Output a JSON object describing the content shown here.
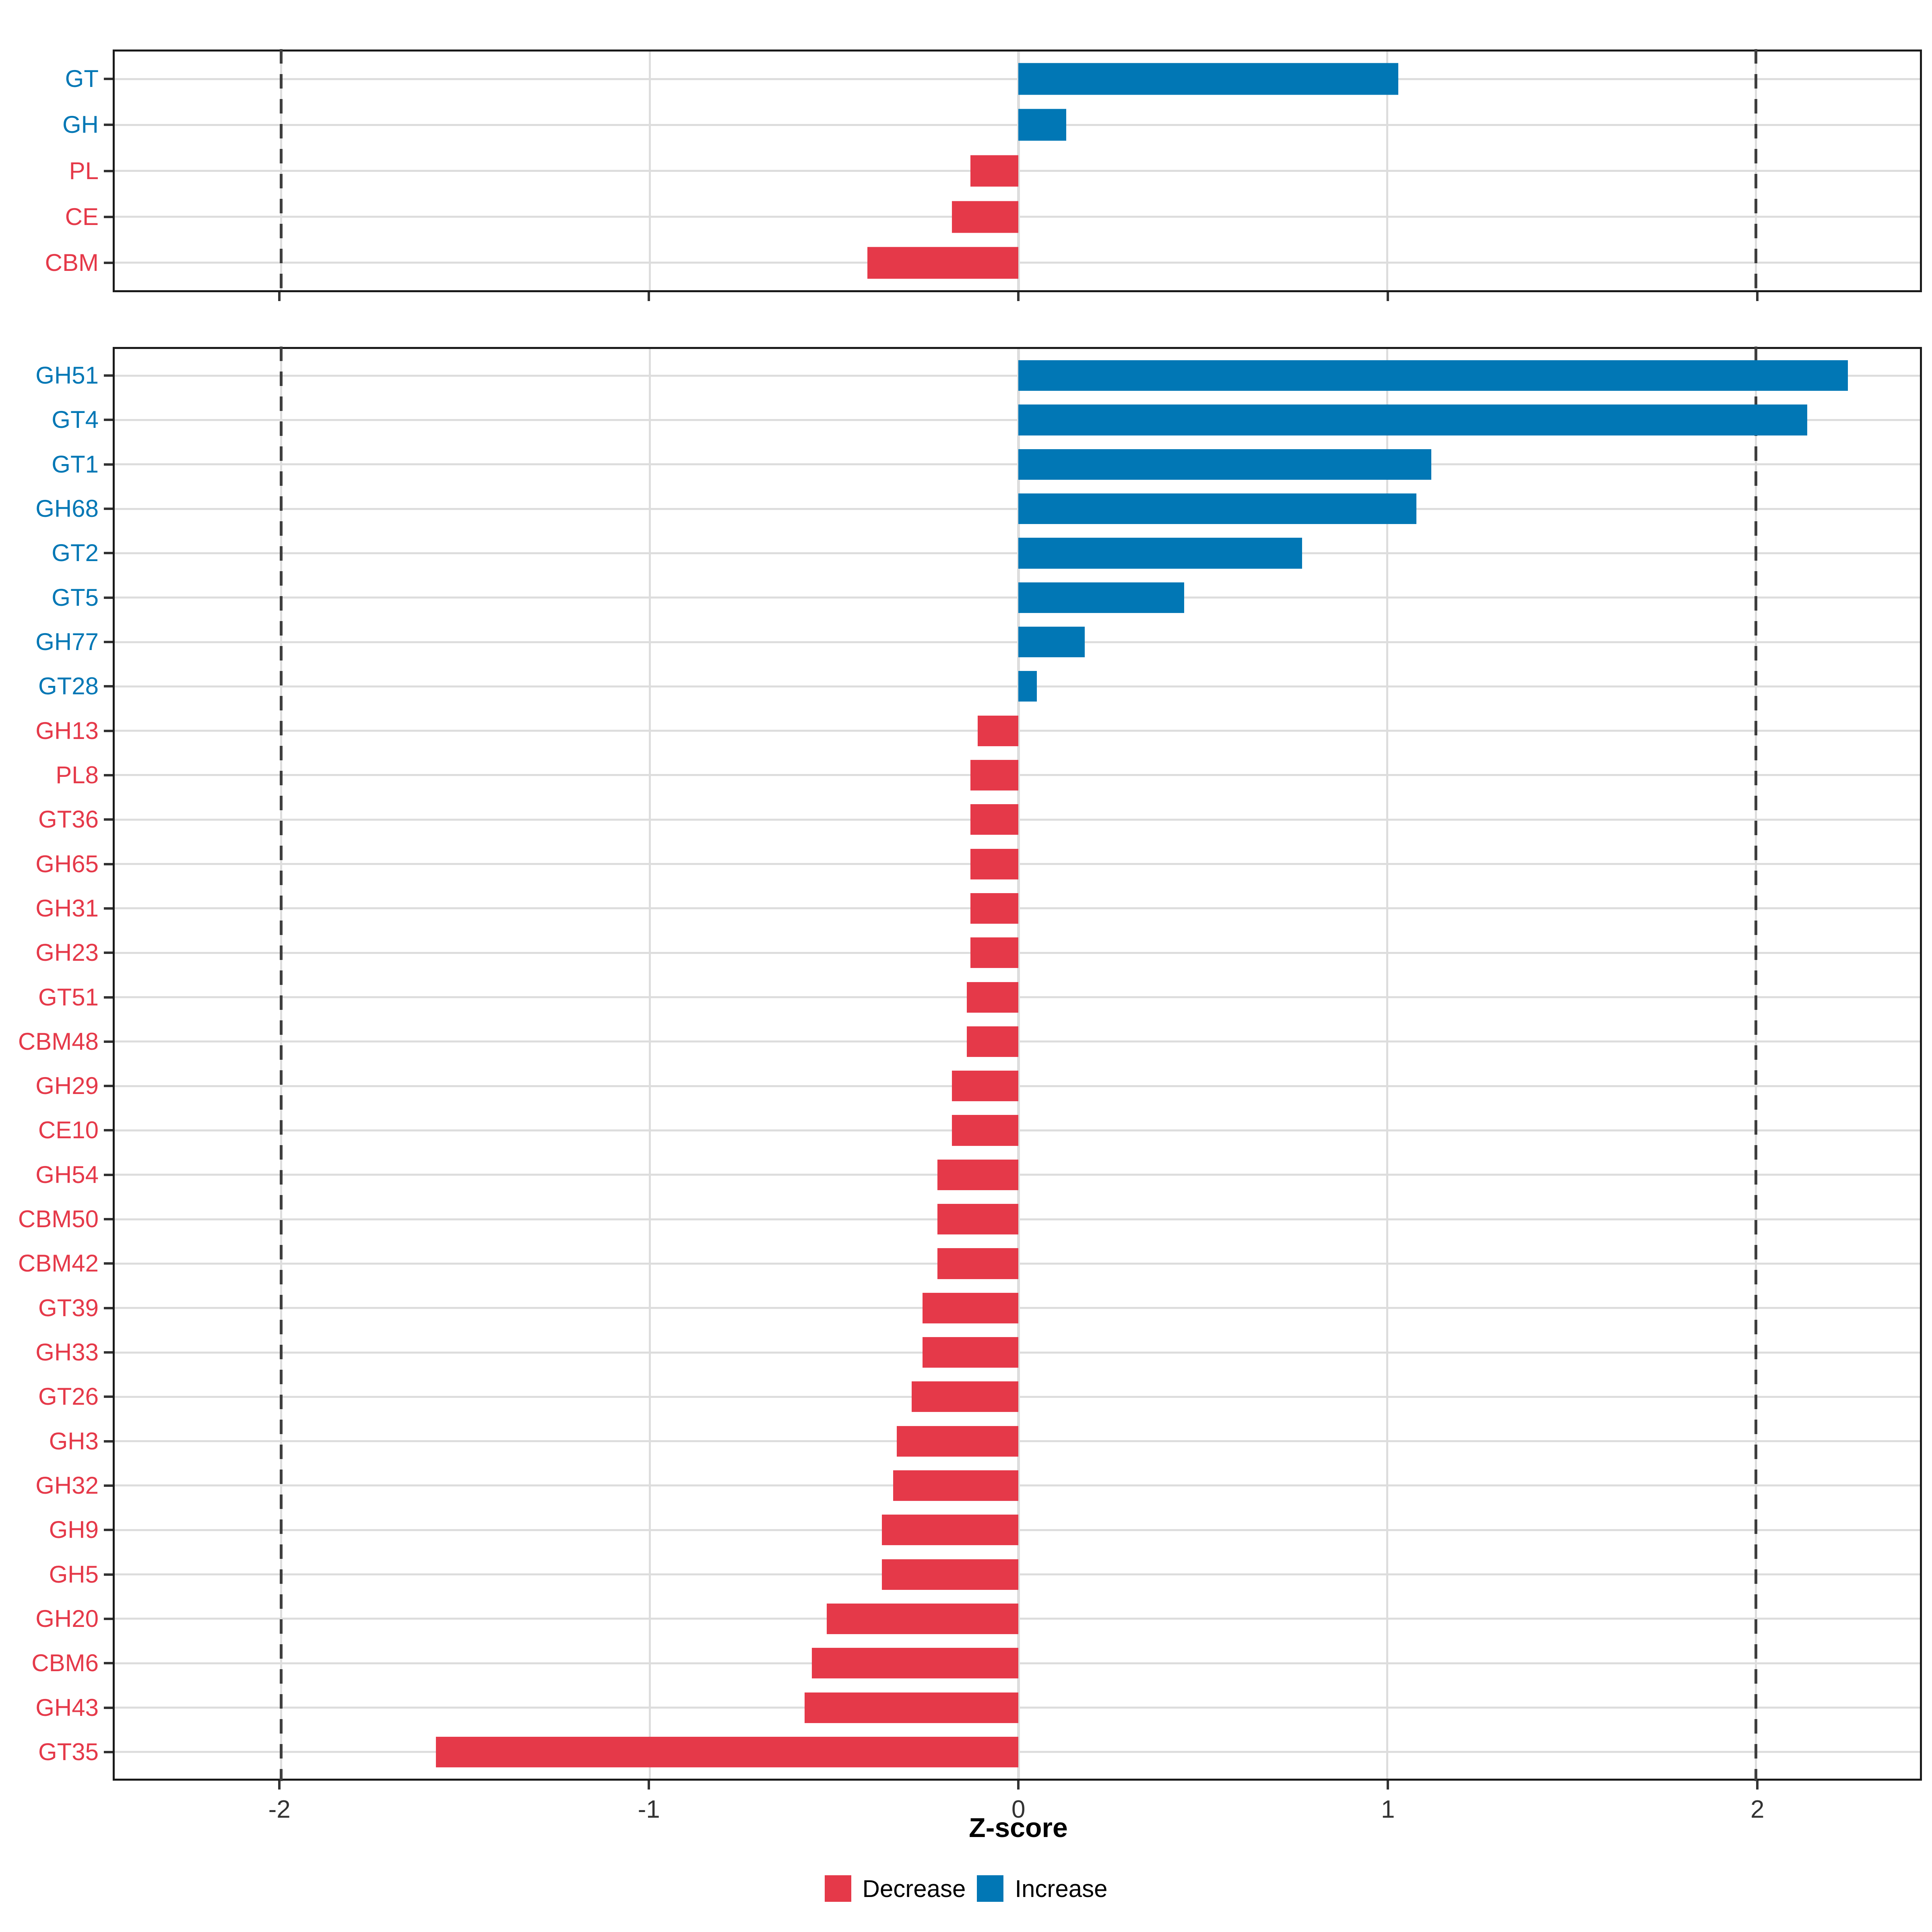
{
  "figure": {
    "xlabel": "Z-score",
    "xtick_labels": [
      "-2",
      "-1",
      "0",
      "1",
      "2"
    ],
    "legend": {
      "decrease_label": "Decrease",
      "increase_label": "Increase"
    },
    "colors": {
      "increase": "#0277B5",
      "decrease": "#E5394A",
      "grid": "#DDDDDD",
      "dashed": "#3F3F3F",
      "border": "#1A1A1A",
      "axis_text": "#333333"
    }
  },
  "chart_data": [
    {
      "type": "bar",
      "panel": "top",
      "orientation": "horizontal",
      "xlabel": "Z-score",
      "xlim": [
        -2.45,
        2.45
      ],
      "xticks": [
        -2,
        -1,
        0,
        1,
        2
      ],
      "grid_vlines": [
        -2,
        -1,
        0,
        1,
        2
      ],
      "dashed_vlines": [
        -2,
        2
      ],
      "grid": true,
      "legend_position": "bottom",
      "categories": [
        "GT",
        "GH",
        "PL",
        "CE",
        "CBM"
      ],
      "values": [
        1.03,
        0.13,
        -0.13,
        -0.18,
        -0.41
      ],
      "directions": [
        "increase",
        "increase",
        "decrease",
        "decrease",
        "decrease"
      ]
    },
    {
      "type": "bar",
      "panel": "bottom",
      "orientation": "horizontal",
      "xlabel": "Z-score",
      "xlim": [
        -2.45,
        2.45
      ],
      "xticks": [
        -2,
        -1,
        0,
        1,
        2
      ],
      "grid_vlines": [
        -2,
        -1,
        0,
        1,
        2
      ],
      "dashed_vlines": [
        -2,
        2
      ],
      "grid": true,
      "legend_position": "bottom",
      "categories": [
        "GH51",
        "GT4",
        "GT1",
        "GH68",
        "GT2",
        "GT5",
        "GH77",
        "GT28",
        "GH13",
        "PL8",
        "GT36",
        "GH65",
        "GH31",
        "GH23",
        "GT51",
        "CBM48",
        "GH29",
        "CE10",
        "GH54",
        "CBM50",
        "CBM42",
        "GT39",
        "GH33",
        "GT26",
        "GH3",
        "GH32",
        "GH9",
        "GH5",
        "GH20",
        "CBM6",
        "GH43",
        "GT35"
      ],
      "values": [
        2.25,
        2.14,
        1.12,
        1.08,
        0.77,
        0.45,
        0.18,
        0.05,
        -0.11,
        -0.13,
        -0.13,
        -0.13,
        -0.13,
        -0.13,
        -0.14,
        -0.14,
        -0.18,
        -0.18,
        -0.22,
        -0.22,
        -0.22,
        -0.26,
        -0.26,
        -0.29,
        -0.33,
        -0.34,
        -0.37,
        -0.37,
        -0.52,
        -0.56,
        -0.58,
        -1.58
      ],
      "directions": [
        "increase",
        "increase",
        "increase",
        "increase",
        "increase",
        "increase",
        "increase",
        "increase",
        "decrease",
        "decrease",
        "decrease",
        "decrease",
        "decrease",
        "decrease",
        "decrease",
        "decrease",
        "decrease",
        "decrease",
        "decrease",
        "decrease",
        "decrease",
        "decrease",
        "decrease",
        "decrease",
        "decrease",
        "decrease",
        "decrease",
        "decrease",
        "decrease",
        "decrease",
        "decrease",
        "decrease"
      ]
    }
  ]
}
